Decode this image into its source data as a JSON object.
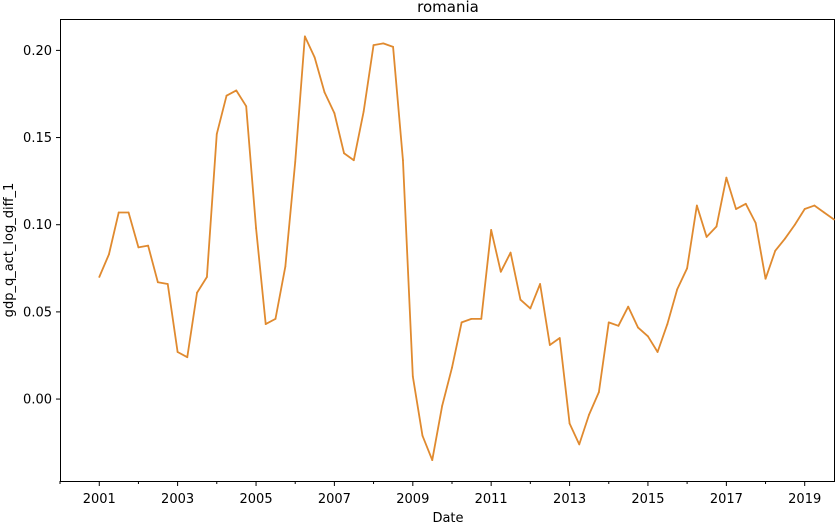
{
  "chart_data": {
    "type": "line",
    "title": "romania",
    "xlabel": "Date",
    "ylabel": "gdp_q_act_log_diff_1",
    "xlim": [
      "2000-01-01",
      "2019-10-01"
    ],
    "ylim": [
      -0.047,
      0.218
    ],
    "x_ticks": [
      "2001",
      "2003",
      "2005",
      "2007",
      "2009",
      "2011",
      "2013",
      "2015",
      "2017",
      "2019"
    ],
    "y_ticks": [
      "0.00",
      "0.05",
      "0.10",
      "0.15",
      "0.20"
    ],
    "grid": false,
    "color": "#e08a2f",
    "series": [
      {
        "values": [
          {
            "x": "2001-01-01",
            "y": 0.07
          },
          {
            "x": "2001-04-01",
            "y": 0.083
          },
          {
            "x": "2001-07-01",
            "y": 0.107
          },
          {
            "x": "2001-10-01",
            "y": 0.107
          },
          {
            "x": "2002-01-01",
            "y": 0.087
          },
          {
            "x": "2002-04-01",
            "y": 0.088
          },
          {
            "x": "2002-07-01",
            "y": 0.067
          },
          {
            "x": "2002-10-01",
            "y": 0.066
          },
          {
            "x": "2003-01-01",
            "y": 0.027
          },
          {
            "x": "2003-04-01",
            "y": 0.024
          },
          {
            "x": "2003-07-01",
            "y": 0.061
          },
          {
            "x": "2003-10-01",
            "y": 0.07
          },
          {
            "x": "2004-01-01",
            "y": 0.152
          },
          {
            "x": "2004-04-01",
            "y": 0.174
          },
          {
            "x": "2004-07-01",
            "y": 0.177
          },
          {
            "x": "2004-10-01",
            "y": 0.168
          },
          {
            "x": "2005-01-01",
            "y": 0.098
          },
          {
            "x": "2005-04-01",
            "y": 0.043
          },
          {
            "x": "2005-07-01",
            "y": 0.046
          },
          {
            "x": "2005-10-01",
            "y": 0.076
          },
          {
            "x": "2006-01-01",
            "y": 0.136
          },
          {
            "x": "2006-04-01",
            "y": 0.208
          },
          {
            "x": "2006-07-01",
            "y": 0.196
          },
          {
            "x": "2006-10-01",
            "y": 0.176
          },
          {
            "x": "2007-01-01",
            "y": 0.164
          },
          {
            "x": "2007-04-01",
            "y": 0.141
          },
          {
            "x": "2007-07-01",
            "y": 0.137
          },
          {
            "x": "2007-10-01",
            "y": 0.165
          },
          {
            "x": "2008-01-01",
            "y": 0.203
          },
          {
            "x": "2008-04-01",
            "y": 0.204
          },
          {
            "x": "2008-07-01",
            "y": 0.202
          },
          {
            "x": "2008-10-01",
            "y": 0.137
          },
          {
            "x": "2009-01-01",
            "y": 0.013
          },
          {
            "x": "2009-04-01",
            "y": -0.021
          },
          {
            "x": "2009-07-01",
            "y": -0.035
          },
          {
            "x": "2009-10-01",
            "y": -0.004
          },
          {
            "x": "2010-01-01",
            "y": 0.018
          },
          {
            "x": "2010-04-01",
            "y": 0.044
          },
          {
            "x": "2010-07-01",
            "y": 0.046
          },
          {
            "x": "2010-10-01",
            "y": 0.046
          },
          {
            "x": "2011-01-01",
            "y": 0.097
          },
          {
            "x": "2011-04-01",
            "y": 0.073
          },
          {
            "x": "2011-07-01",
            "y": 0.084
          },
          {
            "x": "2011-10-01",
            "y": 0.057
          },
          {
            "x": "2012-01-01",
            "y": 0.052
          },
          {
            "x": "2012-04-01",
            "y": 0.066
          },
          {
            "x": "2012-07-01",
            "y": 0.031
          },
          {
            "x": "2012-10-01",
            "y": 0.035
          },
          {
            "x": "2013-01-01",
            "y": -0.014
          },
          {
            "x": "2013-04-01",
            "y": -0.026
          },
          {
            "x": "2013-07-01",
            "y": -0.009
          },
          {
            "x": "2013-10-01",
            "y": 0.004
          },
          {
            "x": "2014-01-01",
            "y": 0.044
          },
          {
            "x": "2014-04-01",
            "y": 0.042
          },
          {
            "x": "2014-07-01",
            "y": 0.053
          },
          {
            "x": "2014-10-01",
            "y": 0.041
          },
          {
            "x": "2015-01-01",
            "y": 0.036
          },
          {
            "x": "2015-04-01",
            "y": 0.027
          },
          {
            "x": "2015-07-01",
            "y": 0.043
          },
          {
            "x": "2015-10-01",
            "y": 0.063
          },
          {
            "x": "2016-01-01",
            "y": 0.075
          },
          {
            "x": "2016-04-01",
            "y": 0.111
          },
          {
            "x": "2016-07-01",
            "y": 0.093
          },
          {
            "x": "2016-10-01",
            "y": 0.099
          },
          {
            "x": "2017-01-01",
            "y": 0.127
          },
          {
            "x": "2017-04-01",
            "y": 0.109
          },
          {
            "x": "2017-07-01",
            "y": 0.112
          },
          {
            "x": "2017-10-01",
            "y": 0.101
          },
          {
            "x": "2018-01-01",
            "y": 0.069
          },
          {
            "x": "2018-04-01",
            "y": 0.085
          },
          {
            "x": "2018-07-01",
            "y": 0.092
          },
          {
            "x": "2018-10-01",
            "y": 0.1
          },
          {
            "x": "2019-01-01",
            "y": 0.109
          },
          {
            "x": "2019-04-01",
            "y": 0.111
          },
          {
            "x": "2019-07-01",
            "y": 0.107
          },
          {
            "x": "2019-10-01",
            "y": 0.103
          }
        ]
      }
    ]
  }
}
